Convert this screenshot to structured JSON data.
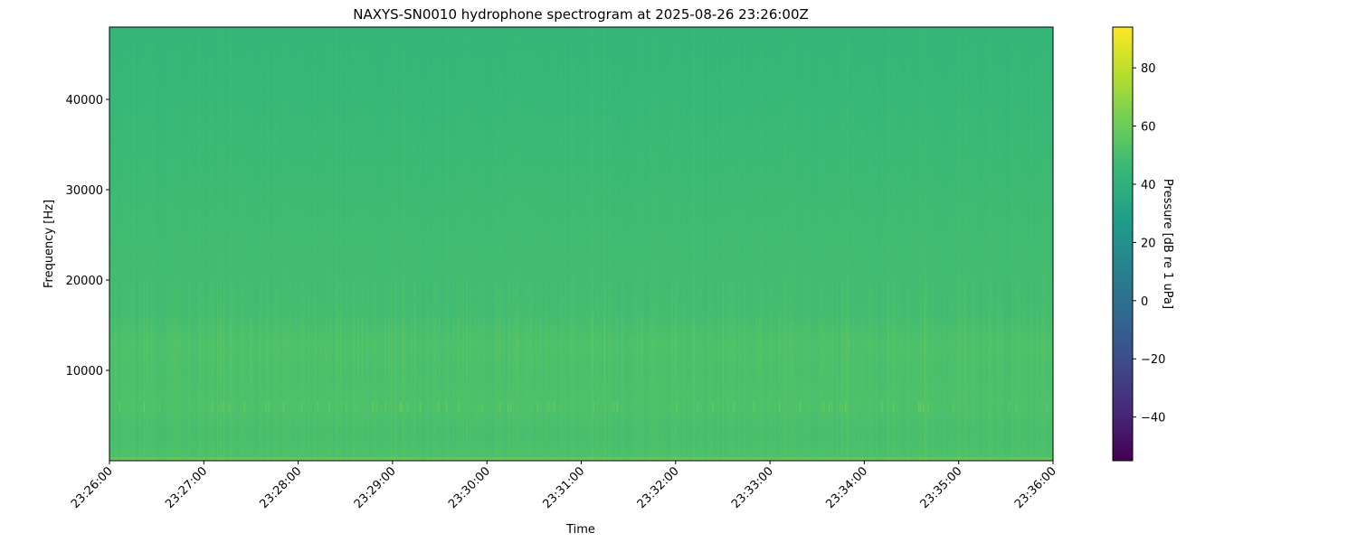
{
  "chart_data": {
    "type": "heatmap",
    "title": "NAXYS-SN0010 hydrophone spectrogram at 2025-08-26 23:26:00Z",
    "xlabel": "Time",
    "ylabel": "Frequency [Hz]",
    "x_ticks": [
      "23:26:00",
      "23:27:00",
      "23:28:00",
      "23:29:00",
      "23:30:00",
      "23:31:00",
      "23:32:00",
      "23:33:00",
      "23:34:00",
      "23:35:00",
      "23:36:00"
    ],
    "xlim": [
      "23:26:00",
      "23:36:00"
    ],
    "y_ticks": [
      10000,
      20000,
      30000,
      40000
    ],
    "ylim": [
      0,
      48000
    ],
    "colorbar": {
      "label": "Pressure [dB re 1 uPa]",
      "colormap": "viridis",
      "ticks": [
        -40,
        -20,
        0,
        20,
        40,
        60,
        80
      ],
      "clim": [
        -55,
        94
      ]
    },
    "approx_level_profile": {
      "frequency_hz": [
        0,
        500,
        3000,
        6000,
        10000,
        13000,
        16000,
        25000,
        35000,
        48000
      ],
      "level_db": [
        64,
        52,
        50,
        52,
        51,
        52,
        49,
        48,
        46,
        44
      ]
    },
    "tonal_band_hz": 6000
  }
}
